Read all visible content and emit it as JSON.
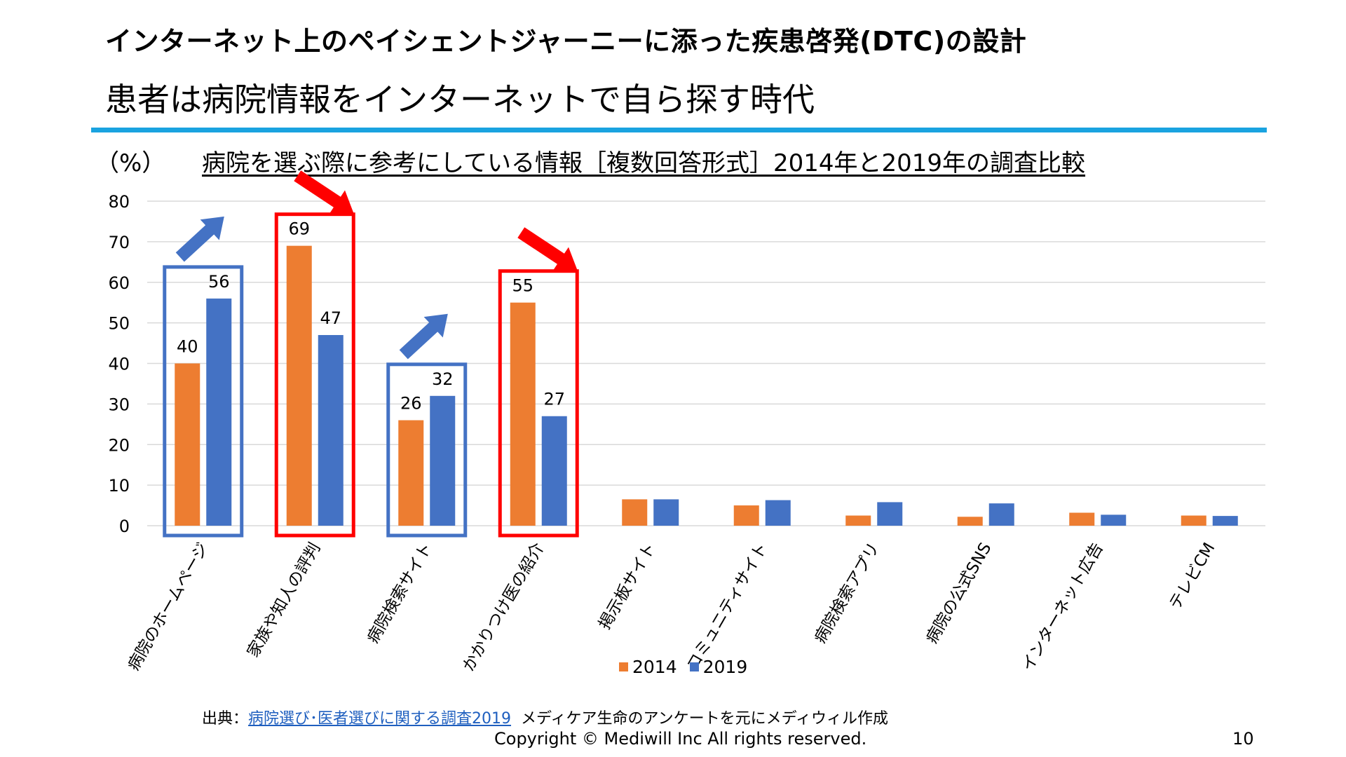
{
  "slide": {
    "title": "インターネット上のペイシェントジャーニーに添った疾患啓発(DTC)の設計",
    "subtitle": "患者は病院情報をインターネットで自ら探す時代",
    "unit_label": "（%）",
    "source_prefix": "出典：",
    "source_link": "病院選び･医者選びに関する調査2019",
    "source_suffix": "メディケア生命のアンケートを元にメディウィル作成",
    "copyright": "Copyright © Mediwill Inc All rights reserved.",
    "page_number": "10"
  },
  "colors": {
    "series_2014": "#ed7d31",
    "series_2019": "#4472c4",
    "increase_box": "#4472c4",
    "decrease_box": "#ff0000",
    "divider": "#1aa3e0",
    "grid": "#d9d9d9"
  },
  "chart_data": {
    "type": "bar",
    "title": "病院を選ぶ際に参考にしている情報［複数回答形式］2014年と2019年の調査比較",
    "xlabel": "",
    "ylabel": "（%）",
    "ylim": [
      0,
      80
    ],
    "yticks": [
      0,
      10,
      20,
      30,
      40,
      50,
      60,
      70,
      80
    ],
    "grid": true,
    "legend_position": "bottom",
    "categories": [
      "病院のホームページ",
      "家族や知人の評判",
      "病院検索サイト",
      "かかりつけ医の紹介",
      "掲示板サイト",
      "コミュニティサイト",
      "病院検索アプリ",
      "病院の公式SNS",
      "インターネット広告",
      "テレビCM"
    ],
    "series": [
      {
        "name": "2014",
        "values": [
          40,
          69,
          26,
          55,
          6.5,
          5,
          2.5,
          2.2,
          3.2,
          2.5
        ]
      },
      {
        "name": "2019",
        "values": [
          56,
          47,
          32,
          27,
          6.5,
          6.3,
          5.8,
          5.5,
          2.7,
          2.4
        ]
      }
    ],
    "data_labels_shown_for": [
      0,
      1,
      2,
      3
    ],
    "annotations": [
      {
        "category_index": 0,
        "trend": "increase"
      },
      {
        "category_index": 1,
        "trend": "decrease"
      },
      {
        "category_index": 2,
        "trend": "increase"
      },
      {
        "category_index": 3,
        "trend": "decrease"
      }
    ]
  }
}
